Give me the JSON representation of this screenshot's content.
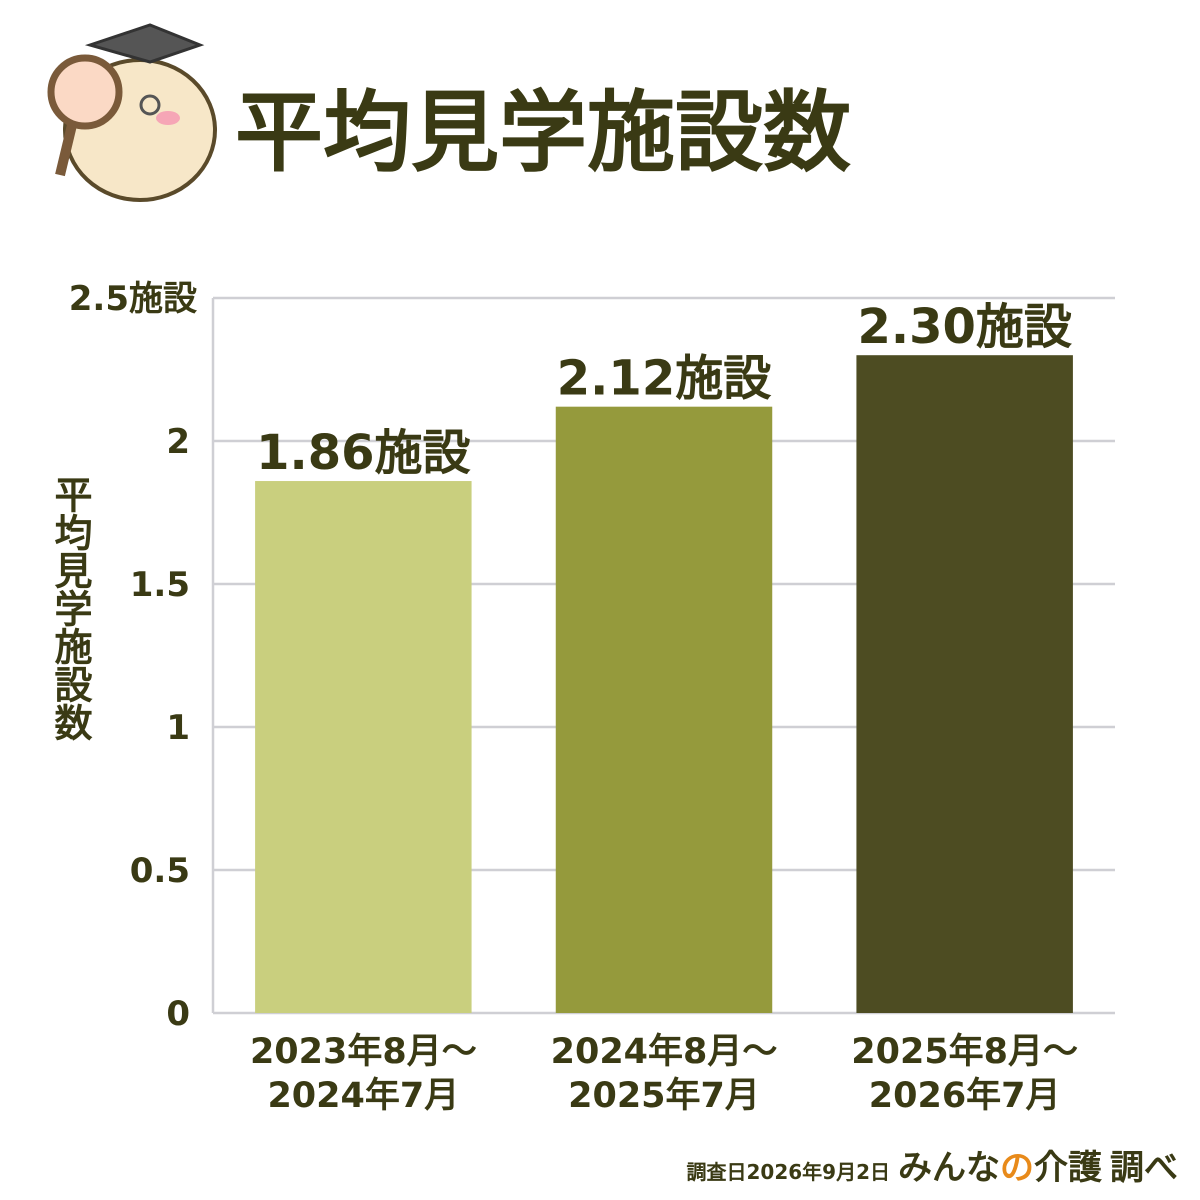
{
  "chart_data": {
    "type": "bar",
    "title": "平均見学施設数",
    "y_label": "平均見学施設数",
    "categories": [
      "2023年8月～\n2024年7月",
      "2024年8月～\n2025年7月",
      "2025年8月～\n2026年7月"
    ],
    "values": [
      1.86,
      2.12,
      2.3
    ],
    "value_labels": [
      "1.86施設",
      "2.12施設",
      "2.30施設"
    ],
    "colors": [
      "#c9cf7e",
      "#959a3c",
      "#4d4c22"
    ],
    "ylim": [
      0,
      2.5
    ],
    "yticks": [
      0,
      0.5,
      1,
      1.5,
      2,
      {
        "value": 2.5,
        "label": "2.5施設"
      }
    ],
    "grid": true
  },
  "footer": {
    "date": "調査日2026年9月2日",
    "brand": [
      "みんな",
      "の",
      "介護"
    ],
    "suffix": "調べ"
  }
}
